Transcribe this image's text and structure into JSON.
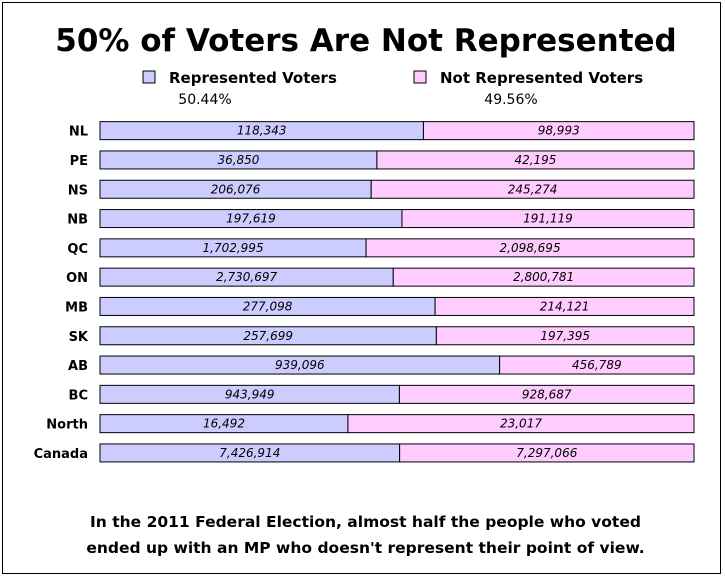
{
  "chart_data": {
    "type": "bar",
    "orientation": "horizontal",
    "stacked": "percent",
    "title": "50% of Voters Are Not Represented",
    "categories": [
      "NL",
      "PE",
      "NS",
      "NB",
      "QC",
      "ON",
      "MB",
      "SK",
      "AB",
      "BC",
      "North",
      "Canada"
    ],
    "series": [
      {
        "name": "Represented Voters",
        "color": "#ccccff",
        "share_label": "50.44%",
        "values": [
          118343,
          36850,
          206076,
          197619,
          1702995,
          2730697,
          277098,
          257699,
          939096,
          943949,
          16492,
          7426914
        ],
        "labels": [
          "118,343",
          "36,850",
          "206,076",
          "197,619",
          "1,702,995",
          "2,730,697",
          "277,098",
          "257,699",
          "939,096",
          "943,949",
          "16,492",
          "7,426,914"
        ]
      },
      {
        "name": "Not Represented Voters",
        "color": "#ffccff",
        "share_label": "49.56%",
        "values": [
          98993,
          42195,
          245274,
          191119,
          2098695,
          2800781,
          214121,
          197395,
          456789,
          928687,
          23017,
          7297066
        ],
        "labels": [
          "98,993",
          "42,195",
          "245,274",
          "191,119",
          "2,098,695",
          "2,800,781",
          "214,121",
          "197,395",
          "456,789",
          "928,687",
          "23,017",
          "7,297,066"
        ]
      }
    ],
    "x_ticks": [
      "0%",
      "10%",
      "20%",
      "30%",
      "40%",
      "50%",
      "60%",
      "70%",
      "80%",
      "90%",
      "100%"
    ],
    "xlim": [
      0,
      100
    ],
    "legend_position": "top",
    "grid": false
  },
  "footer": {
    "line1": "In the 2011 Federal Election, almost half the people who voted",
    "line2": "ended up with an MP who doesn't represent their point of view."
  }
}
